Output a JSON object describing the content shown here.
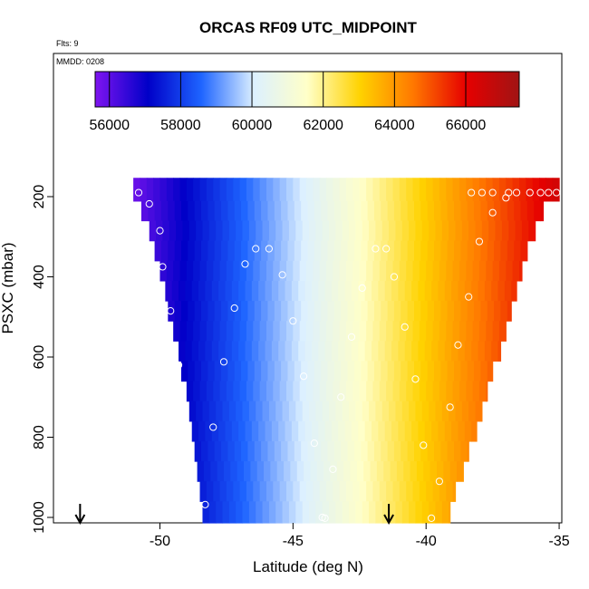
{
  "chart_data": {
    "type": "heatmap",
    "title": "ORCAS RF09 UTC_MIDPOINT",
    "flights_note": "Flts: 9",
    "date_note": "MMDD: 0208",
    "xlabel": "Latitude (deg N)",
    "ylabel": "PSXC (mbar)",
    "xlim": [
      -54,
      -34.9
    ],
    "ylim": [
      1010,
      10
    ],
    "reversed_y": true,
    "x_ticks": [
      "-50",
      "-45",
      "-40",
      "-35"
    ],
    "x_tick_values": [
      -50,
      -45,
      -40,
      -35
    ],
    "y_ticks": [
      "200",
      "400",
      "600",
      "800",
      "1000"
    ],
    "y_tick_values": [
      200,
      400,
      600,
      800,
      1000
    ],
    "colorbar": {
      "min": 55600,
      "max": 67500,
      "ticks": [
        "56000",
        "58000",
        "60000",
        "62000",
        "64000",
        "66000"
      ],
      "tick_values": [
        56000,
        58000,
        60000,
        62000,
        64000,
        66000
      ],
      "colors": [
        "#7f14f0",
        "#0000c8",
        "#1e64ff",
        "#dcf0ff",
        "#ffffc8",
        "#ffd200",
        "#ff7800",
        "#e60000",
        "#a01414"
      ]
    },
    "field": {
      "description_levels": "pressure bands of the field (left edge latitude of each band)",
      "rows": [
        {
          "p": 187,
          "lat_min": -51.0,
          "lat_max": -35.0
        },
        {
          "p": 235,
          "lat_min": -50.7,
          "lat_max": -35.6
        },
        {
          "p": 285,
          "lat_min": -50.4,
          "lat_max": -35.9
        },
        {
          "p": 335,
          "lat_min": -50.2,
          "lat_max": -36.2
        },
        {
          "p": 385,
          "lat_min": -50.0,
          "lat_max": -36.4
        },
        {
          "p": 435,
          "lat_min": -49.8,
          "lat_max": -36.6
        },
        {
          "p": 485,
          "lat_min": -49.7,
          "lat_max": -36.8
        },
        {
          "p": 535,
          "lat_min": -49.5,
          "lat_max": -37.0
        },
        {
          "p": 585,
          "lat_min": -49.3,
          "lat_max": -37.2
        },
        {
          "p": 635,
          "lat_min": -49.2,
          "lat_max": -37.5
        },
        {
          "p": 685,
          "lat_min": -49.0,
          "lat_max": -37.7
        },
        {
          "p": 735,
          "lat_min": -48.9,
          "lat_max": -37.9
        },
        {
          "p": 785,
          "lat_min": -48.8,
          "lat_max": -38.1
        },
        {
          "p": 835,
          "lat_min": -48.7,
          "lat_max": -38.4
        },
        {
          "p": 885,
          "lat_min": -48.6,
          "lat_max": -38.6
        },
        {
          "p": 935,
          "lat_min": -48.5,
          "lat_max": -38.9
        },
        {
          "p": 985,
          "lat_min": -48.4,
          "lat_max": -39.1
        }
      ],
      "value_at_lat_min": 55800,
      "value_at_lat_max": 66500
    },
    "points": [
      {
        "x": -50.8,
        "y": 190
      },
      {
        "x": -50.4,
        "y": 218
      },
      {
        "x": -50.0,
        "y": 285
      },
      {
        "x": -49.9,
        "y": 375
      },
      {
        "x": -49.6,
        "y": 485
      },
      {
        "x": -49.3,
        "y": 620
      },
      {
        "x": -49.0,
        "y": 780
      },
      {
        "x": -48.7,
        "y": 975
      },
      {
        "x": -48.7,
        "y": 995
      },
      {
        "x": -48.6,
        "y": 992
      },
      {
        "x": -48.3,
        "y": 968
      },
      {
        "x": -48.0,
        "y": 775
      },
      {
        "x": -47.6,
        "y": 612
      },
      {
        "x": -47.2,
        "y": 478
      },
      {
        "x": -46.8,
        "y": 368
      },
      {
        "x": -46.4,
        "y": 330
      },
      {
        "x": -45.9,
        "y": 330
      },
      {
        "x": -45.4,
        "y": 395
      },
      {
        "x": -45.0,
        "y": 510
      },
      {
        "x": -44.6,
        "y": 648
      },
      {
        "x": -44.2,
        "y": 815
      },
      {
        "x": -43.9,
        "y": 1000
      },
      {
        "x": -43.8,
        "y": 1002
      },
      {
        "x": -43.5,
        "y": 880
      },
      {
        "x": -43.2,
        "y": 700
      },
      {
        "x": -42.8,
        "y": 550
      },
      {
        "x": -42.4,
        "y": 428
      },
      {
        "x": -41.9,
        "y": 330
      },
      {
        "x": -41.5,
        "y": 330
      },
      {
        "x": -41.2,
        "y": 400
      },
      {
        "x": -40.8,
        "y": 525
      },
      {
        "x": -40.4,
        "y": 655
      },
      {
        "x": -40.1,
        "y": 820
      },
      {
        "x": -39.8,
        "y": 1002
      },
      {
        "x": -39.5,
        "y": 910
      },
      {
        "x": -39.1,
        "y": 725
      },
      {
        "x": -38.8,
        "y": 570
      },
      {
        "x": -38.4,
        "y": 450
      },
      {
        "x": -38.0,
        "y": 312
      },
      {
        "x": -37.5,
        "y": 240
      },
      {
        "x": -37.0,
        "y": 203
      },
      {
        "x": -36.9,
        "y": 190
      },
      {
        "x": -38.3,
        "y": 190
      },
      {
        "x": -37.9,
        "y": 190
      },
      {
        "x": -37.5,
        "y": 190
      },
      {
        "x": -36.6,
        "y": 190
      },
      {
        "x": -36.1,
        "y": 190
      },
      {
        "x": -35.7,
        "y": 190
      },
      {
        "x": -35.4,
        "y": 190
      },
      {
        "x": -35.1,
        "y": 190
      }
    ],
    "arrows": [
      {
        "x": -53.0
      },
      {
        "x": -41.4
      }
    ]
  }
}
